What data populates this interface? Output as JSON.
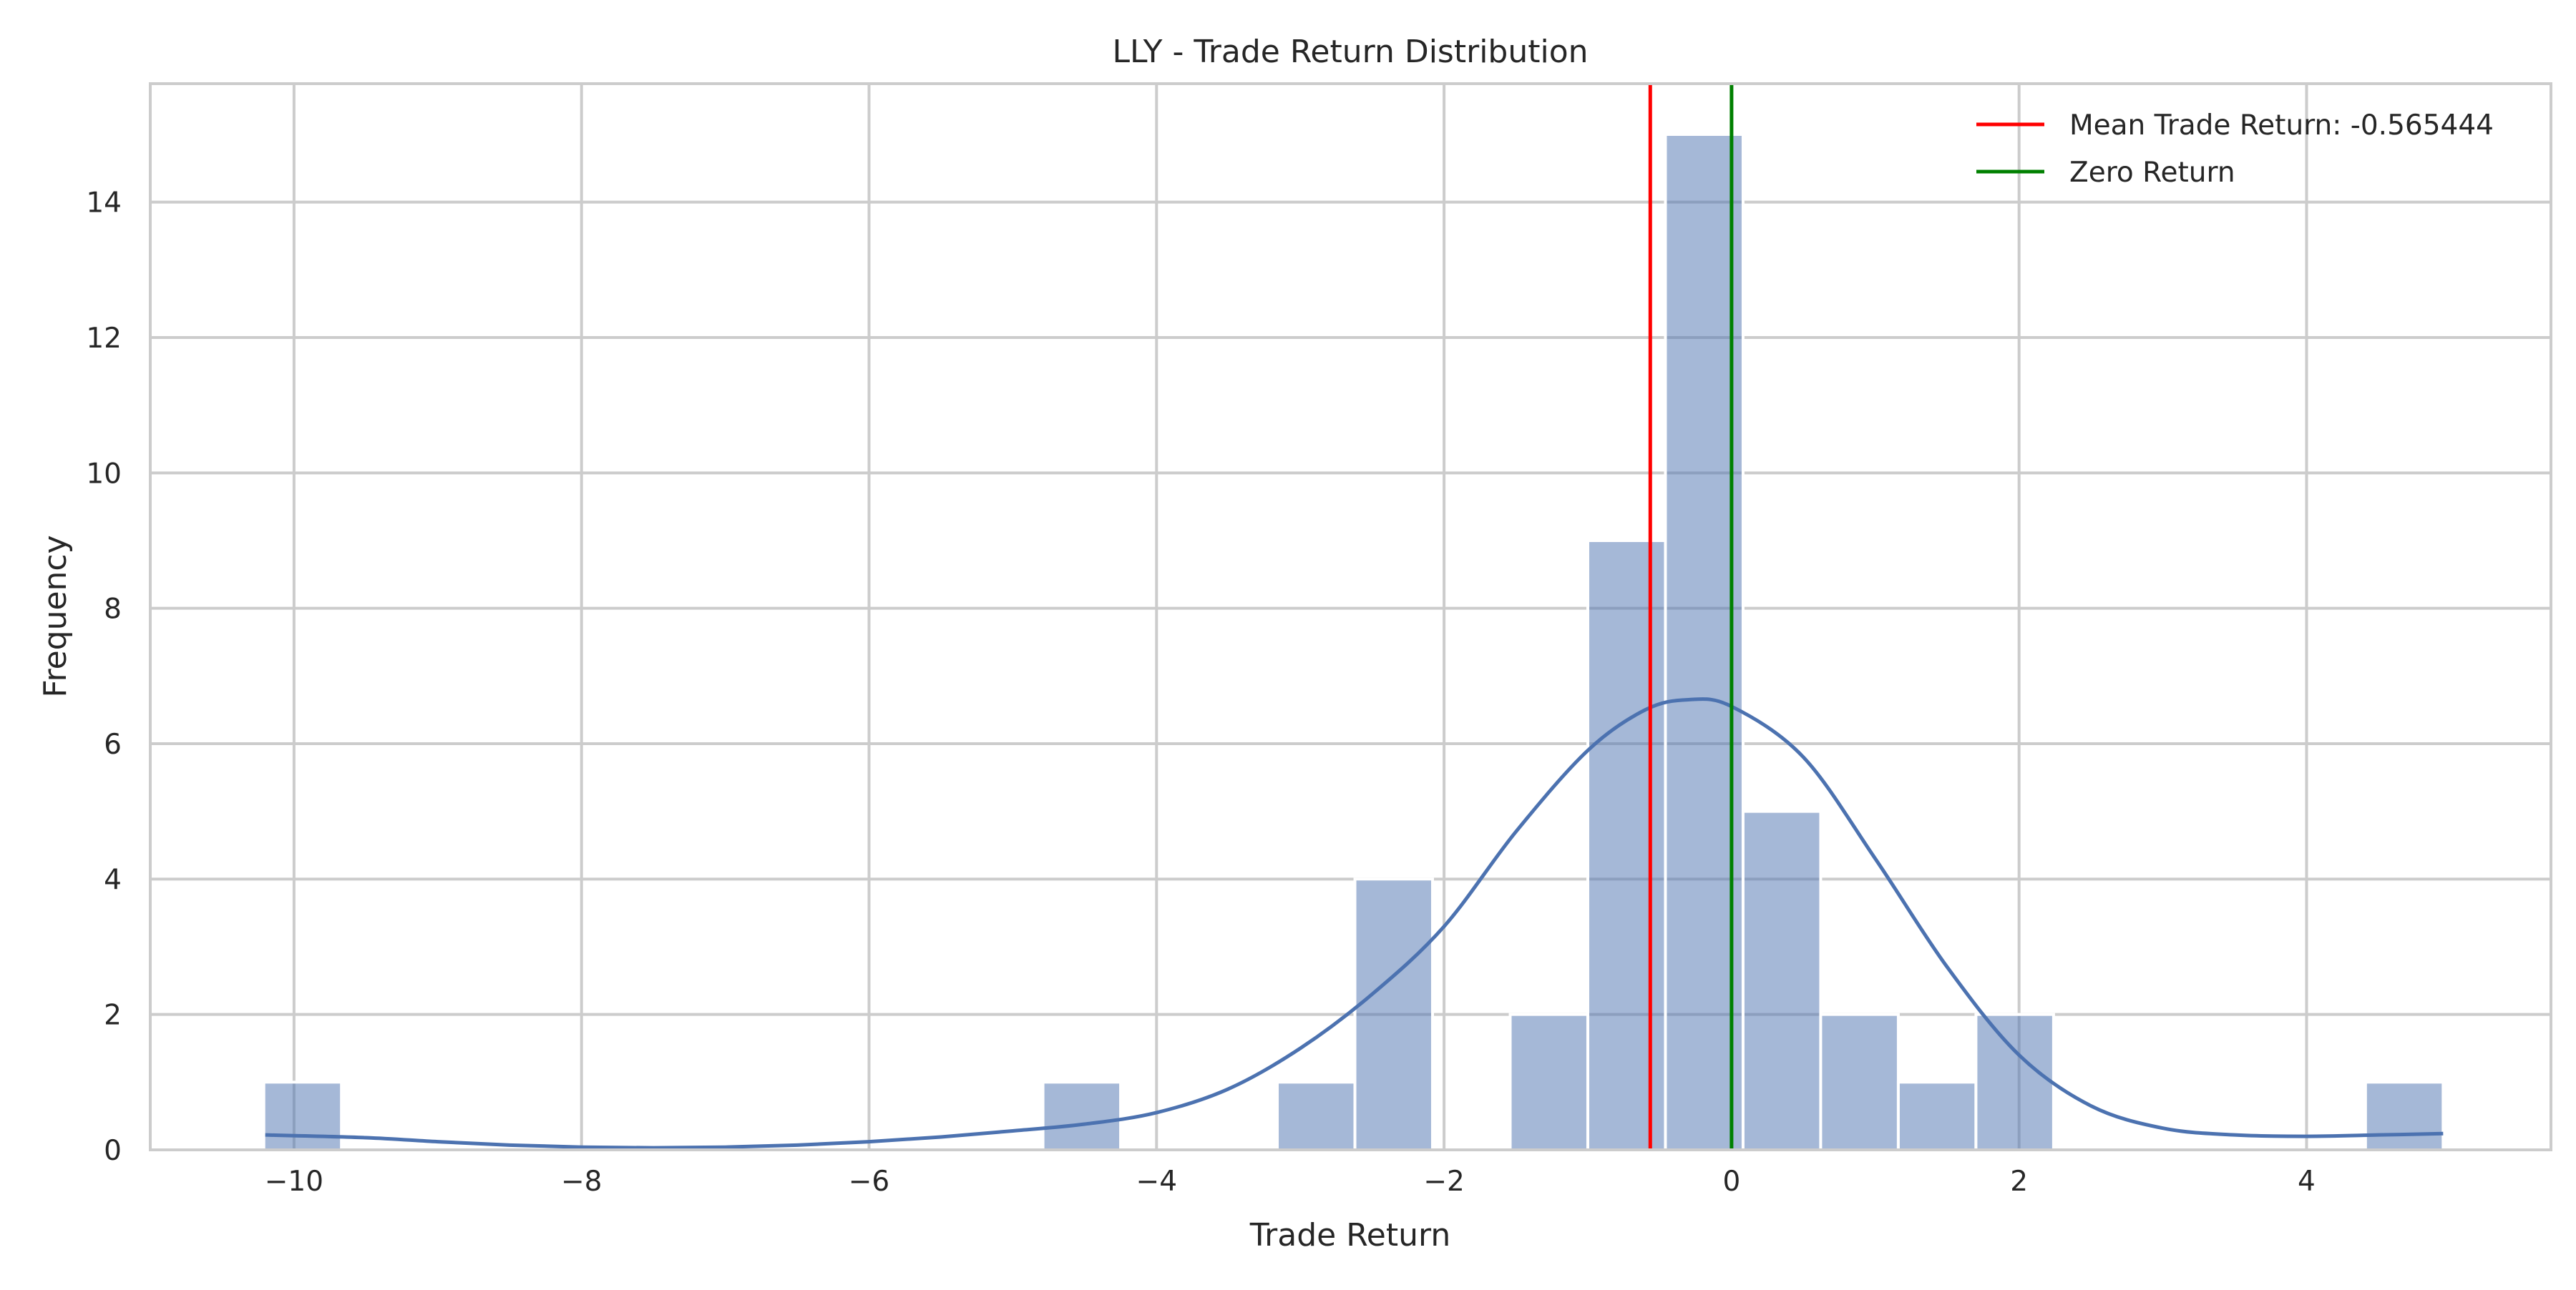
{
  "chart_data": {
    "type": "bar",
    "title": "LLY - Trade Return Distribution",
    "xlabel": "Trade Return",
    "ylabel": "Frequency",
    "xlim": [
      -11.0,
      5.7
    ],
    "ylim": [
      0,
      15.75
    ],
    "xticks": [
      -10,
      -8,
      -6,
      -4,
      -2,
      0,
      2,
      4
    ],
    "xtick_labels": [
      "−10",
      "−8",
      "−6",
      "−4",
      "−2",
      "0",
      "2",
      "4"
    ],
    "yticks": [
      0,
      2,
      4,
      6,
      8,
      10,
      12,
      14
    ],
    "ytick_labels": [
      "0",
      "2",
      "4",
      "6",
      "8",
      "10",
      "12",
      "14"
    ],
    "grid": true,
    "legend_position": "top-right",
    "histogram": {
      "bins": [
        {
          "x0": -10.21,
          "x1": -9.67,
          "count": 1
        },
        {
          "x0": -4.79,
          "x1": -4.25,
          "count": 1
        },
        {
          "x0": -3.16,
          "x1": -2.62,
          "count": 1
        },
        {
          "x0": -2.62,
          "x1": -2.08,
          "count": 4
        },
        {
          "x0": -1.54,
          "x1": -1.0,
          "count": 2
        },
        {
          "x0": -1.0,
          "x1": -0.46,
          "count": 9
        },
        {
          "x0": -0.46,
          "x1": 0.08,
          "count": 15
        },
        {
          "x0": 0.08,
          "x1": 0.62,
          "count": 5
        },
        {
          "x0": 0.62,
          "x1": 1.16,
          "count": 2
        },
        {
          "x0": 1.16,
          "x1": 1.7,
          "count": 1
        },
        {
          "x0": 1.7,
          "x1": 2.24,
          "count": 2
        },
        {
          "x0": 4.41,
          "x1": 4.95,
          "count": 1
        }
      ],
      "color": "#4c72b0",
      "opacity": 0.5
    },
    "kde": {
      "color": "#4c72b0",
      "x": [
        -10.2,
        -9.5,
        -9.0,
        -8.5,
        -8.0,
        -7.5,
        -7.0,
        -6.5,
        -6.0,
        -5.5,
        -5.0,
        -4.5,
        -4.0,
        -3.5,
        -3.0,
        -2.5,
        -2.0,
        -1.5,
        -1.0,
        -0.6,
        -0.3,
        0.0,
        0.5,
        1.0,
        1.5,
        2.0,
        2.5,
        3.0,
        3.5,
        4.0,
        4.5,
        4.95
      ],
      "y": [
        0.22,
        0.18,
        0.12,
        0.07,
        0.04,
        0.03,
        0.04,
        0.07,
        0.12,
        0.19,
        0.28,
        0.38,
        0.55,
        0.9,
        1.5,
        2.3,
        3.3,
        4.7,
        5.9,
        6.5,
        6.65,
        6.55,
        5.8,
        4.3,
        2.7,
        1.4,
        0.65,
        0.32,
        0.22,
        0.2,
        0.22,
        0.24
      ]
    },
    "lines": [
      {
        "name": "Mean Trade Return: -0.565444",
        "x": -0.565444,
        "color": "#ff0000"
      },
      {
        "name": "Zero Return",
        "x": 0,
        "color": "#008000"
      }
    ]
  }
}
